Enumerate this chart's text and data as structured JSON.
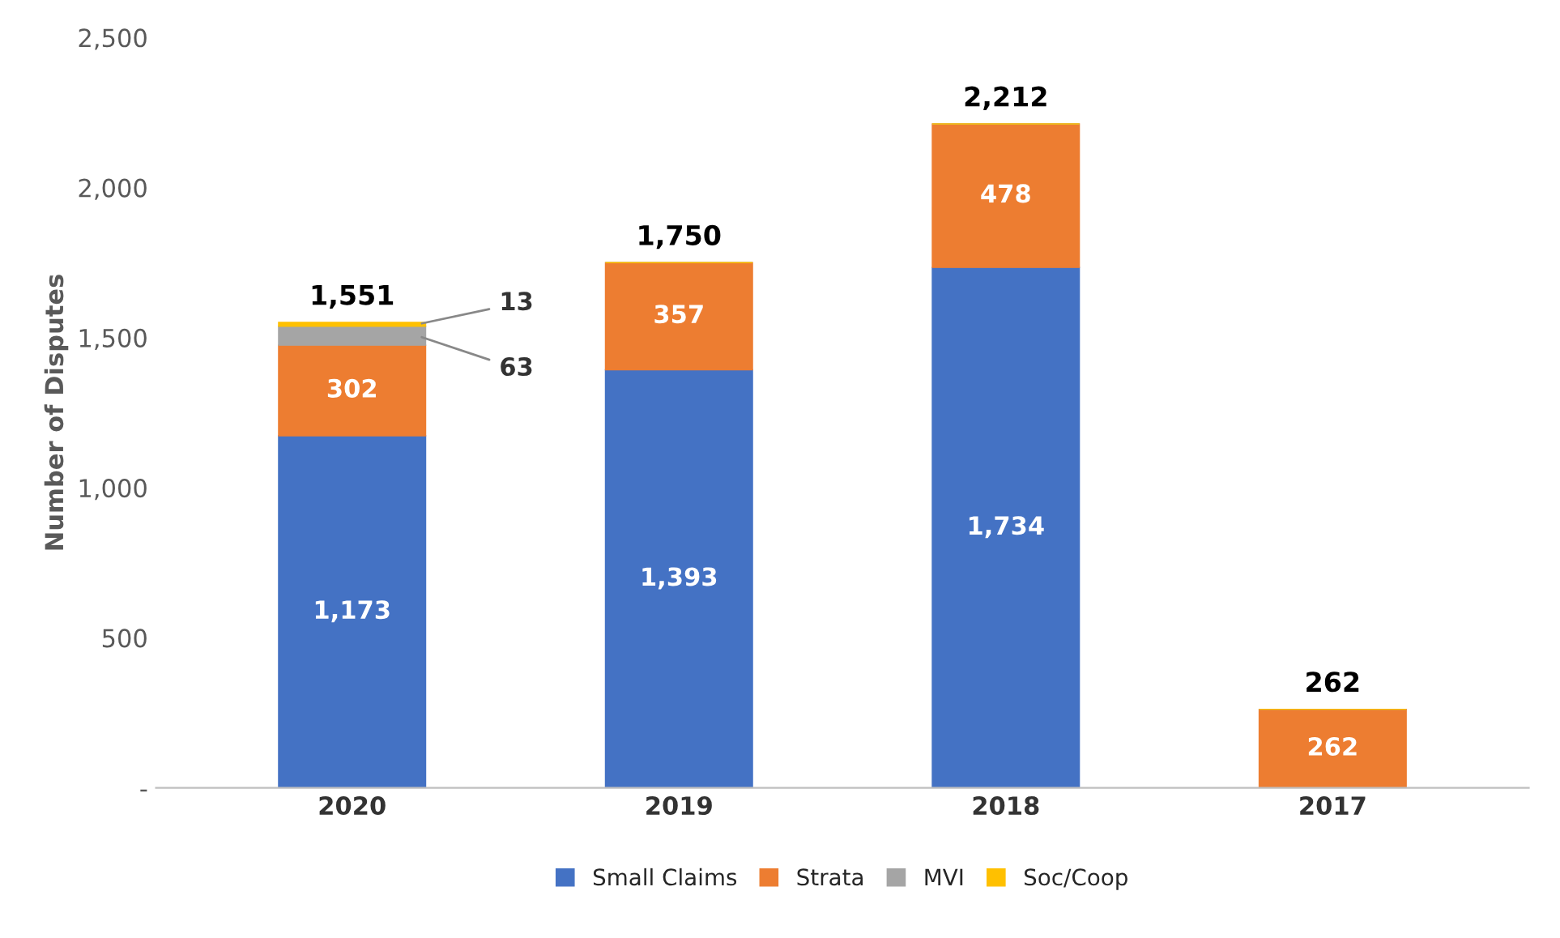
{
  "chart_data": {
    "type": "bar",
    "stacked": true,
    "ylabel": "Number of Disputes",
    "categories": [
      "2020",
      "2019",
      "2018",
      "2017"
    ],
    "series": [
      {
        "name": "Small Claims",
        "color": "#4472c4",
        "values": [
          1173,
          1393,
          1734,
          0
        ],
        "value_labels": [
          "1,173",
          "1,393",
          "1,734",
          null
        ]
      },
      {
        "name": "Strata",
        "color": "#ed7d31",
        "values": [
          302,
          357,
          478,
          262
        ],
        "value_labels": [
          "302",
          "357",
          "478",
          "262"
        ]
      },
      {
        "name": "MVI",
        "color": "#a5a5a5",
        "values": [
          63,
          0,
          0,
          0
        ],
        "value_labels": [
          "63",
          null,
          null,
          null
        ]
      },
      {
        "name": "Soc/Coop",
        "color": "#ffc000",
        "values": [
          13,
          0,
          0,
          0
        ],
        "value_labels": [
          "13",
          null,
          null,
          null
        ]
      }
    ],
    "totals": [
      "1,551",
      "1,750",
      "2,212",
      "262"
    ],
    "ylim": [
      0,
      2500
    ],
    "yticks": [
      {
        "value": 0,
        "label": "-"
      },
      {
        "value": 500,
        "label": "500"
      },
      {
        "value": 1000,
        "label": "1,000"
      },
      {
        "value": 1500,
        "label": "1,500"
      },
      {
        "value": 2000,
        "label": "2,000"
      },
      {
        "value": 2500,
        "label": "2,500"
      }
    ],
    "grid": false,
    "legend": "bottom"
  }
}
